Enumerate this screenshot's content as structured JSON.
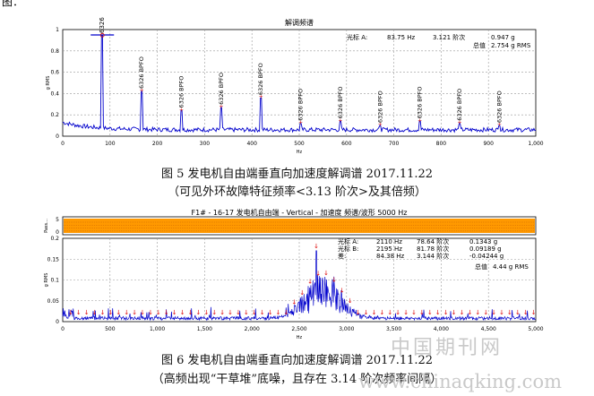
{
  "corner_text": "图：",
  "chart_data": [
    {
      "type": "line",
      "title": "解调频谱",
      "xlabel": "Hz",
      "ylabel": "g RMS",
      "xlim": [
        0,
        1000
      ],
      "ylim": [
        0,
        1
      ],
      "grid": true,
      "x_ticks": [
        "0",
        "100",
        "200",
        "300",
        "400",
        "500",
        "600",
        "700",
        "800",
        "900",
        "1,000"
      ],
      "y_ticks": [
        "0",
        "0.2",
        "0.4",
        "0.6",
        "0.8",
        "1"
      ],
      "readout": {
        "row1": [
          "光标 A:",
          "83.75 Hz",
          "3.121 阶次",
          "0.947 g"
        ],
        "row2": [
          "总值",
          "2.754 g RMS"
        ]
      },
      "cursor_label": "6326",
      "peaks": [
        {
          "x": 83.75,
          "y": 0.947
        },
        {
          "x": 167,
          "y": 0.42,
          "label": "6326 BPFO"
        },
        {
          "x": 251,
          "y": 0.24,
          "label": "6326 BPFO"
        },
        {
          "x": 335,
          "y": 0.27,
          "label": "6326 BPFO"
        },
        {
          "x": 419,
          "y": 0.36,
          "label": "6326 BPFO"
        },
        {
          "x": 503,
          "y": 0.12,
          "label": "6326 BPFO"
        },
        {
          "x": 587,
          "y": 0.14,
          "label": "6326 BPFO"
        },
        {
          "x": 671,
          "y": 0.1,
          "label": "6326 BPFO"
        },
        {
          "x": 755,
          "y": 0.14,
          "label": "6326 BPFO"
        },
        {
          "x": 839,
          "y": 0.12,
          "label": "6326 BPFO"
        },
        {
          "x": 923,
          "y": 0.1,
          "label": "6326 BPFO"
        }
      ]
    },
    {
      "type": "line",
      "title": "F1# - 16-17 发电机自由端 - Vertical - 加速度 频谱/波形 5000 Hz",
      "xlabel": "Hz",
      "ylabel": "g RMS",
      "xlim": [
        0,
        5000
      ],
      "ylim": [
        0,
        0.2
      ],
      "grid": true,
      "x_ticks": [
        "0",
        "500",
        "1,000",
        "1,500",
        "2,000",
        "2,500",
        "3,000",
        "3,500",
        "4,000",
        "4,500",
        "5,000"
      ],
      "y_ticks": [
        "0",
        "0.05",
        "0.1",
        "0.15",
        "0.2"
      ],
      "wave_panel": {
        "ylabel": "Pass...",
        "ticks": [
          "5",
          "0"
        ]
      },
      "readout": {
        "row1": [
          "光标 A:",
          "2110 Hz",
          "78.64 阶次",
          "0.1343 g"
        ],
        "row2": [
          "光标 B:",
          "2195 Hz",
          "81.78 阶次",
          "0.09189 g"
        ],
        "row3": [
          "差:",
          "84.38 Hz",
          "3.144 阶次",
          "-0.04244 g"
        ],
        "row4": [
          "总值",
          "4.44 g RMS"
        ]
      },
      "markers_hz_spacing": 84.38,
      "main_peak": {
        "x": 2680,
        "y": 0.17
      }
    }
  ],
  "captions": {
    "fig5_line1": "图 5   发电机自由端垂直向加速度解调谱  2017.11.22",
    "fig5_line2": "（可见外环故障特征频率<3.13 阶次>及其倍频）",
    "fig6_line1": "图 6   发电机自由端垂直向加速度解调谱  2017.11.22",
    "fig6_line2": "（高频出现“干草堆”底噪，且存在 3.14 阶次频率间隔）"
  },
  "watermark": {
    "cn": "中国期刊网",
    "url": "www.chinaqking.com"
  }
}
